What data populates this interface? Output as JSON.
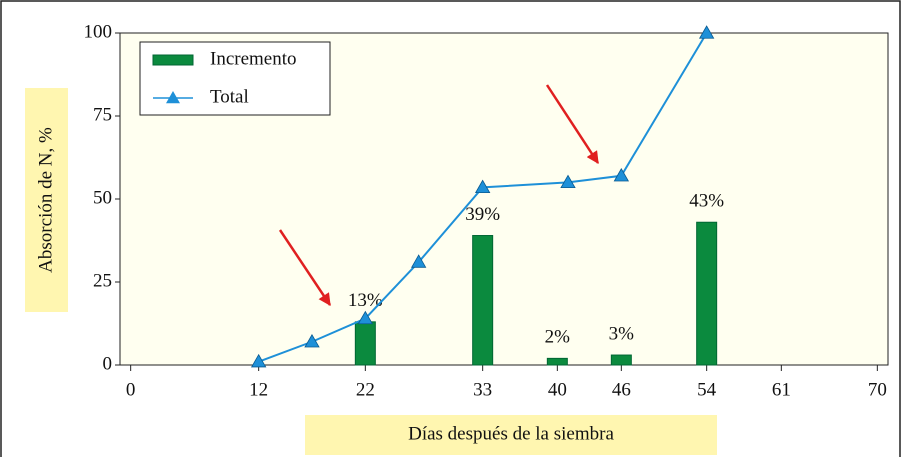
{
  "chart_data": {
    "type": "combo",
    "ylabel": "Absorción de N, %",
    "xlabel": "Días después de la siembra",
    "xlim": [
      -1,
      71
    ],
    "xticks": [
      0,
      12,
      22,
      33,
      40,
      46,
      54,
      61,
      70
    ],
    "ylim": [
      0,
      100
    ],
    "yticks": [
      0,
      25,
      50,
      75,
      100
    ],
    "grid": false,
    "legend": "upper-left",
    "series": [
      {
        "name": "Incremento",
        "type": "bar",
        "color": "#0b8a3e",
        "x": [
          22,
          33,
          40,
          46,
          54
        ],
        "values": [
          13,
          39,
          2,
          3,
          43
        ],
        "value_labels": [
          "13%",
          "39%",
          "2%",
          "3%",
          "43%"
        ]
      },
      {
        "name": "Total",
        "type": "line",
        "color": "#1e90d8",
        "x": [
          12,
          17,
          22,
          27,
          33,
          41,
          46,
          54
        ],
        "values": [
          1,
          7,
          14,
          31,
          53.5,
          55,
          57,
          100
        ]
      }
    ]
  }
}
